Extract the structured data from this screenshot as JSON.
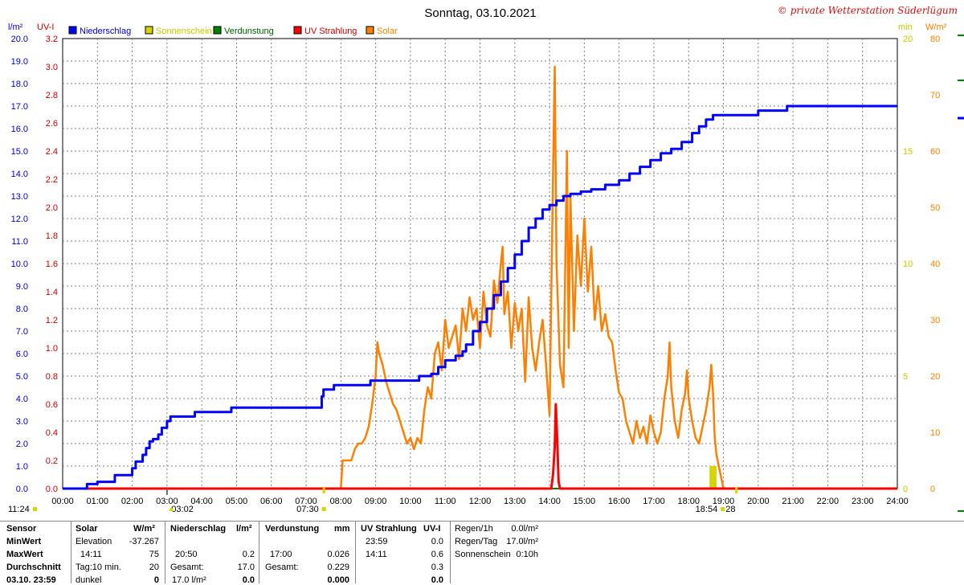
{
  "header": {
    "title": "Sonntag, 03.10.2021",
    "copyright": "© private Wetterstation Süderlügum",
    "unit_left_rain": "l/m²",
    "unit_left_uv": "UV-I",
    "unit_right_sun": "min",
    "unit_right_solar": "W/m²"
  },
  "colors": {
    "rain": "#0000ff",
    "sun": "#d4d400",
    "evap": "#008000",
    "uv": "#ff0000",
    "solar": "#ff8000",
    "grid": "#808080"
  },
  "chart_data": {
    "type": "line",
    "x_range": [
      "00:00",
      "24:00"
    ],
    "x_ticks": [
      "00:00",
      "01:00",
      "02:00",
      "03:00",
      "04:00",
      "05:00",
      "06:00",
      "07:00",
      "08:00",
      "09:00",
      "10:00",
      "11:00",
      "12:00",
      "13:00",
      "14:00",
      "15:00",
      "16:00",
      "17:00",
      "18:00",
      "19:00",
      "20:00",
      "21:00",
      "22:00",
      "23:00",
      "24:00"
    ],
    "axes": {
      "rain_ticks": [
        "0.0",
        "1.0",
        "2.0",
        "3.0",
        "4.0",
        "5.0",
        "6.0",
        "7.0",
        "8.0",
        "9.0",
        "10.0",
        "11.0",
        "12.0",
        "13.0",
        "14.0",
        "15.0",
        "16.0",
        "17.0",
        "18.0",
        "19.0",
        "20.0"
      ],
      "rain_range": [
        0,
        20
      ],
      "uv_ticks": [
        "0.0",
        "0.2",
        "0.4",
        "0.6",
        "0.8",
        "1.0",
        "1.2",
        "1.4",
        "1.6",
        "1.8",
        "2.0",
        "2.2",
        "2.4",
        "2.6",
        "2.8",
        "3.0",
        "3.2"
      ],
      "uv_range": [
        0,
        3.2
      ],
      "sun_ticks": [
        "0",
        "5",
        "10",
        "15",
        "20"
      ],
      "sun_range": [
        0,
        20
      ],
      "solar_ticks": [
        "0",
        "10",
        "20",
        "30",
        "40",
        "50",
        "60",
        "70",
        "80"
      ],
      "solar_range": [
        0,
        80
      ]
    },
    "legend": [
      {
        "key": "rain",
        "label": "Niederschlag"
      },
      {
        "key": "sun",
        "label": "Sonnenschein"
      },
      {
        "key": "evap",
        "label": "Verdunstung"
      },
      {
        "key": "uv",
        "label": "UV Strahlung"
      },
      {
        "key": "solar",
        "label": "Solar"
      }
    ],
    "legend_position": "top-left",
    "grid": true,
    "series": [
      {
        "name": "Niederschlag",
        "axis": "rain",
        "step": true,
        "points": [
          [
            0,
            0
          ],
          [
            0.7,
            0
          ],
          [
            0.7,
            0.2
          ],
          [
            1.0,
            0.3
          ],
          [
            1.5,
            0.6
          ],
          [
            2.0,
            0.9
          ],
          [
            2.1,
            1.2
          ],
          [
            2.3,
            1.5
          ],
          [
            2.4,
            1.8
          ],
          [
            2.5,
            2.1
          ],
          [
            2.6,
            2.2
          ],
          [
            2.75,
            2.4
          ],
          [
            2.85,
            2.7
          ],
          [
            3.0,
            3.0
          ],
          [
            3.1,
            3.2
          ],
          [
            3.5,
            3.2
          ],
          [
            3.8,
            3.4
          ],
          [
            4.8,
            3.4
          ],
          [
            4.85,
            3.6
          ],
          [
            7.4,
            3.6
          ],
          [
            7.45,
            4.1
          ],
          [
            7.5,
            4.4
          ],
          [
            7.8,
            4.6
          ],
          [
            8.8,
            4.6
          ],
          [
            8.85,
            4.8
          ],
          [
            10.2,
            4.8
          ],
          [
            10.25,
            5.0
          ],
          [
            10.6,
            5.1
          ],
          [
            10.8,
            5.4
          ],
          [
            11.0,
            5.7
          ],
          [
            11.3,
            5.9
          ],
          [
            11.5,
            6.1
          ],
          [
            11.6,
            6.4
          ],
          [
            11.8,
            7.0
          ],
          [
            12.0,
            7.4
          ],
          [
            12.2,
            8.0
          ],
          [
            12.4,
            8.6
          ],
          [
            12.6,
            9.2
          ],
          [
            12.8,
            9.8
          ],
          [
            13.0,
            10.4
          ],
          [
            13.2,
            11.0
          ],
          [
            13.4,
            11.6
          ],
          [
            13.6,
            12.0
          ],
          [
            13.8,
            12.4
          ],
          [
            14.0,
            12.6
          ],
          [
            14.2,
            12.8
          ],
          [
            14.4,
            13.0
          ],
          [
            14.6,
            13.1
          ],
          [
            14.9,
            13.2
          ],
          [
            15.2,
            13.3
          ],
          [
            15.6,
            13.5
          ],
          [
            16.0,
            13.7
          ],
          [
            16.3,
            14.0
          ],
          [
            16.6,
            14.3
          ],
          [
            16.9,
            14.6
          ],
          [
            17.2,
            14.9
          ],
          [
            17.5,
            15.1
          ],
          [
            17.8,
            15.4
          ],
          [
            18.1,
            15.8
          ],
          [
            18.3,
            16.1
          ],
          [
            18.5,
            16.4
          ],
          [
            18.7,
            16.6
          ],
          [
            19.0,
            16.6
          ],
          [
            19.5,
            16.6
          ],
          [
            20.0,
            16.8
          ],
          [
            20.5,
            16.8
          ],
          [
            20.83,
            17.0
          ],
          [
            21.5,
            17.0
          ],
          [
            24,
            17.0
          ]
        ]
      },
      {
        "name": "Solar",
        "axis": "solar",
        "points": [
          [
            0,
            0
          ],
          [
            8.0,
            0
          ],
          [
            8.05,
            5
          ],
          [
            8.3,
            5
          ],
          [
            8.4,
            7
          ],
          [
            8.5,
            8
          ],
          [
            8.6,
            8
          ],
          [
            8.7,
            9
          ],
          [
            8.8,
            11
          ],
          [
            8.9,
            15
          ],
          [
            9.0,
            20
          ],
          [
            9.05,
            26
          ],
          [
            9.1,
            24
          ],
          [
            9.2,
            22
          ],
          [
            9.3,
            19
          ],
          [
            9.4,
            17
          ],
          [
            9.5,
            15
          ],
          [
            9.6,
            14
          ],
          [
            9.7,
            12
          ],
          [
            9.8,
            10
          ],
          [
            9.9,
            8
          ],
          [
            10.0,
            9
          ],
          [
            10.1,
            7
          ],
          [
            10.2,
            9
          ],
          [
            10.3,
            8
          ],
          [
            10.4,
            14
          ],
          [
            10.5,
            18
          ],
          [
            10.6,
            16
          ],
          [
            10.7,
            24
          ],
          [
            10.8,
            26
          ],
          [
            10.9,
            21
          ],
          [
            11.0,
            30
          ],
          [
            11.1,
            25
          ],
          [
            11.2,
            27
          ],
          [
            11.3,
            29
          ],
          [
            11.4,
            23
          ],
          [
            11.5,
            32
          ],
          [
            11.6,
            28
          ],
          [
            11.7,
            34
          ],
          [
            11.8,
            30
          ],
          [
            11.9,
            32
          ],
          [
            12.0,
            25
          ],
          [
            12.1,
            35
          ],
          [
            12.2,
            29
          ],
          [
            12.3,
            27
          ],
          [
            12.4,
            37
          ],
          [
            12.5,
            33
          ],
          [
            12.6,
            40
          ],
          [
            12.65,
            43
          ],
          [
            12.7,
            31
          ],
          [
            12.8,
            35
          ],
          [
            12.9,
            25
          ],
          [
            13.0,
            33
          ],
          [
            13.1,
            28
          ],
          [
            13.2,
            32
          ],
          [
            13.3,
            19
          ],
          [
            13.4,
            34
          ],
          [
            13.5,
            25
          ],
          [
            13.6,
            21
          ],
          [
            13.7,
            26
          ],
          [
            13.8,
            30
          ],
          [
            13.9,
            22
          ],
          [
            14.0,
            13
          ],
          [
            14.1,
            56
          ],
          [
            14.15,
            75
          ],
          [
            14.2,
            40
          ],
          [
            14.3,
            22
          ],
          [
            14.4,
            18
          ],
          [
            14.5,
            60
          ],
          [
            14.55,
            25
          ],
          [
            14.6,
            52
          ],
          [
            14.7,
            28
          ],
          [
            14.8,
            45
          ],
          [
            14.9,
            36
          ],
          [
            15.0,
            48
          ],
          [
            15.1,
            35
          ],
          [
            15.2,
            43
          ],
          [
            15.3,
            30
          ],
          [
            15.4,
            36
          ],
          [
            15.5,
            28
          ],
          [
            15.6,
            31
          ],
          [
            15.7,
            27
          ],
          [
            15.8,
            26
          ],
          [
            15.9,
            21
          ],
          [
            16.0,
            17
          ],
          [
            16.1,
            16
          ],
          [
            16.2,
            12
          ],
          [
            16.3,
            10
          ],
          [
            16.4,
            8
          ],
          [
            16.5,
            12
          ],
          [
            16.6,
            9
          ],
          [
            16.7,
            11
          ],
          [
            16.8,
            8
          ],
          [
            16.9,
            13
          ],
          [
            17.0,
            10
          ],
          [
            17.1,
            8
          ],
          [
            17.2,
            10
          ],
          [
            17.3,
            16
          ],
          [
            17.4,
            20
          ],
          [
            17.45,
            26
          ],
          [
            17.5,
            18
          ],
          [
            17.6,
            12
          ],
          [
            17.7,
            9
          ],
          [
            17.8,
            14
          ],
          [
            17.9,
            17
          ],
          [
            17.95,
            21
          ],
          [
            18.0,
            16
          ],
          [
            18.1,
            12
          ],
          [
            18.2,
            9
          ],
          [
            18.3,
            8
          ],
          [
            18.4,
            11
          ],
          [
            18.5,
            14
          ],
          [
            18.6,
            18
          ],
          [
            18.65,
            22
          ],
          [
            18.7,
            17
          ],
          [
            18.75,
            9
          ],
          [
            18.8,
            6
          ],
          [
            18.9,
            3
          ],
          [
            19.0,
            0
          ],
          [
            24,
            0
          ]
        ]
      },
      {
        "name": "UV Strahlung",
        "axis": "uv",
        "points": [
          [
            0,
            0
          ],
          [
            14.05,
            0
          ],
          [
            14.1,
            0.1
          ],
          [
            14.15,
            0.3
          ],
          [
            14.18,
            0.6
          ],
          [
            14.22,
            0.35
          ],
          [
            14.26,
            0.05
          ],
          [
            14.3,
            0
          ],
          [
            24,
            0
          ]
        ]
      },
      {
        "name": "Verdunstung",
        "axis": "rain",
        "points": [
          [
            0,
            0
          ],
          [
            24,
            0
          ]
        ]
      },
      {
        "name": "Sonnenschein",
        "axis": "sun",
        "bars": [
          [
            18.6,
            1
          ],
          [
            18.7,
            1
          ]
        ]
      }
    ],
    "markers": {
      "dawn": "07:30",
      "moonrise": "03:02",
      "dusk": "18:54",
      "sunset_partial": "28",
      "left_time": "11:24"
    }
  },
  "stats": {
    "col_sensor": {
      "header": "Sensor",
      "rows": [
        "MinWert",
        "MaxWert",
        "Durchschnitt",
        "03.10. 23:59"
      ]
    },
    "col_solar": {
      "header": "Solar",
      "unit": "W/m²",
      "rows": [
        [
          "Elevation",
          "-37.267"
        ],
        [
          "14:11",
          "75"
        ],
        [
          "Tag:10 min.",
          "20"
        ],
        [
          "dunkel",
          "0"
        ]
      ]
    },
    "col_rain": {
      "header": "Niederschlag",
      "unit": "l/m²",
      "rows": [
        [
          "",
          ""
        ],
        [
          "20:50",
          "0.2"
        ],
        [
          "Gesamt:",
          "17.0"
        ],
        [
          "17.0 l/m²",
          "0.0"
        ]
      ]
    },
    "col_evap": {
      "header": "Verdunstung",
      "unit": "mm",
      "rows": [
        [
          "",
          ""
        ],
        [
          "17:00",
          "0.026"
        ],
        [
          "Gesamt:",
          "0.229"
        ],
        [
          "",
          "0.000"
        ]
      ]
    },
    "col_uv": {
      "header": "UV Strahlung",
      "unit": "UV-I",
      "rows": [
        [
          "23:59",
          "0.0"
        ],
        [
          "14:11",
          "0.6"
        ],
        [
          "",
          "0.3"
        ],
        [
          "",
          "0.0"
        ]
      ]
    },
    "col_extra": {
      "rows": [
        [
          "Regen/1h",
          "0.0l/m²"
        ],
        [
          "Regen/Tag",
          "17.0l/m²"
        ],
        [
          "Sonnenschein",
          "0:10h"
        ]
      ]
    }
  }
}
